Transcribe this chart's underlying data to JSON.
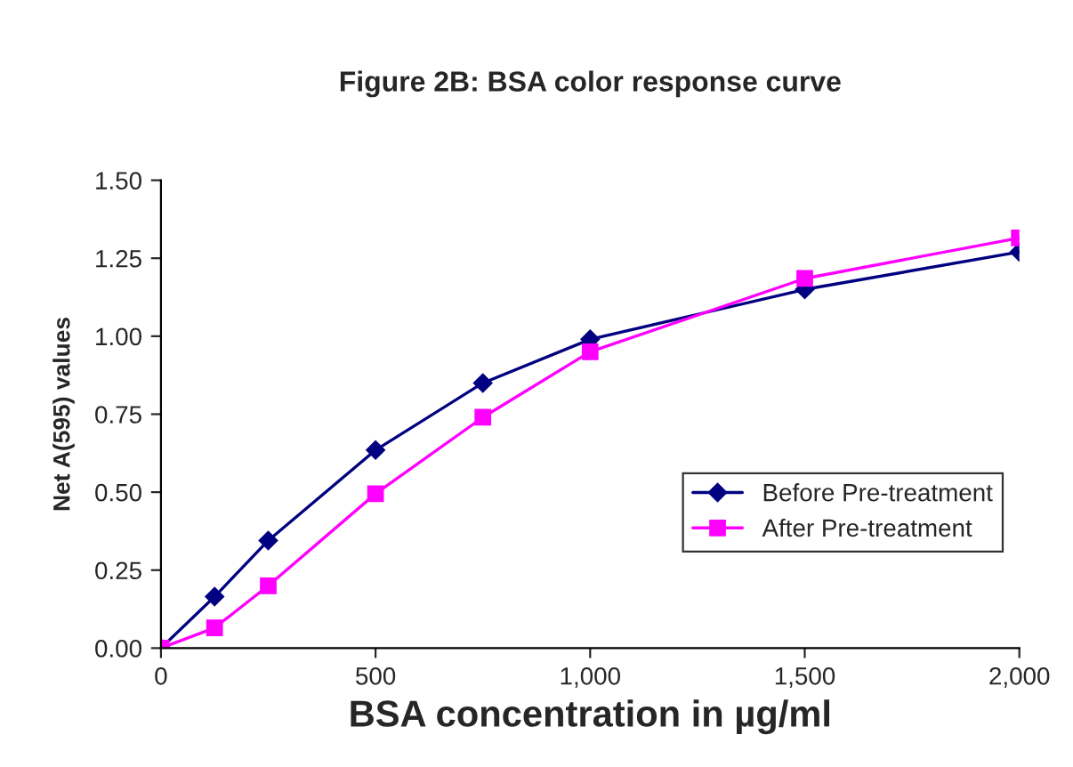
{
  "chart_data": {
    "type": "line",
    "title": "Figure 2B: BSA color response curve",
    "xlabel": "BSA concentration in µg/ml",
    "ylabel": "Net A(595) values",
    "x": [
      0,
      125,
      250,
      500,
      750,
      1000,
      1500,
      2000
    ],
    "series": [
      {
        "name": "Before Pre-treatment",
        "color": "#000080",
        "marker": "diamond",
        "values": [
          0,
          0.165,
          0.345,
          0.635,
          0.85,
          0.99,
          1.15,
          1.27
        ]
      },
      {
        "name": "After Pre-treatment",
        "color": "#ff00ff",
        "marker": "square",
        "values": [
          0,
          0.065,
          0.2,
          0.495,
          0.74,
          0.95,
          1.185,
          1.315
        ]
      }
    ],
    "xlim": [
      0,
      2000
    ],
    "xticks": [
      0,
      500,
      {
        "value": 1000,
        "label": "1,000"
      },
      {
        "value": 1500,
        "label": "1,500"
      },
      {
        "value": 2000,
        "label": "2,000"
      }
    ],
    "ylim": [
      0,
      1.5
    ],
    "yticks": [
      {
        "value": 0,
        "label": "0.00"
      },
      {
        "value": 0.25,
        "label": "0.25"
      },
      {
        "value": 0.5,
        "label": "0.50"
      },
      {
        "value": 0.75,
        "label": "0.75"
      },
      {
        "value": 1,
        "label": "1.00"
      },
      {
        "value": 1.25,
        "label": "1.25"
      },
      {
        "value": 1.5,
        "label": "1.50"
      }
    ],
    "grid": false,
    "legend": "lower right",
    "line_style": "solid"
  }
}
